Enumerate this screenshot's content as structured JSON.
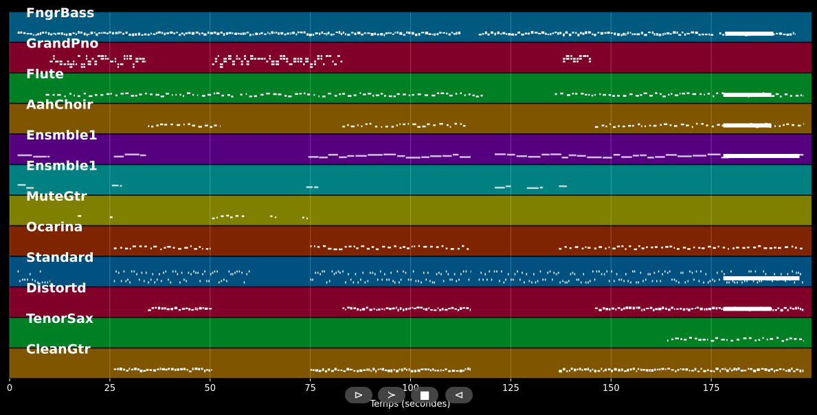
{
  "chart_data": {
    "type": "piano-roll",
    "xlabel": "Temps (secondes)",
    "xlim": [
      0,
      200
    ],
    "xticks": [
      0,
      25,
      50,
      75,
      100,
      125,
      150,
      175
    ],
    "grid": true,
    "tracks": [
      {
        "name": "FngrBass",
        "color": "#005a80",
        "segments": [
          [
            2,
            112.5,
            "dense"
          ],
          [
            117,
            175.5,
            "dense"
          ],
          [
            177,
            196,
            "dense"
          ],
          [
            178.5,
            190.5,
            "block"
          ]
        ]
      },
      {
        "name": "GrandPno",
        "color": "#80002a",
        "segments": [
          [
            10,
            34,
            "chord"
          ],
          [
            50.5,
            83,
            "chord"
          ],
          [
            138,
            145,
            "chord"
          ]
        ]
      },
      {
        "name": "Flute",
        "color": "#007f24",
        "segments": [
          [
            9,
            47,
            "sparse"
          ],
          [
            48,
            56,
            "sparse"
          ],
          [
            57.5,
            118,
            "sparse"
          ],
          [
            136,
            198,
            "sparse"
          ],
          [
            178,
            190,
            "block"
          ]
        ]
      },
      {
        "name": "AahChoir",
        "color": "#7f5500",
        "segments": [
          [
            34.5,
            52.5,
            "sparse"
          ],
          [
            83,
            114,
            "sparse"
          ],
          [
            146,
            198,
            "sparse"
          ],
          [
            178,
            190,
            "block"
          ]
        ]
      },
      {
        "name": "Ensmble1",
        "color": "#55007f",
        "segments": [
          [
            2,
            10,
            "pad"
          ],
          [
            26,
            34,
            "pad"
          ],
          [
            74.5,
            115,
            "pad"
          ],
          [
            121,
            198,
            "pad"
          ],
          [
            178,
            197,
            "block"
          ]
        ]
      },
      {
        "name": "Ensmble1",
        "color": "#008080",
        "segments": [
          [
            2,
            6,
            "pad"
          ],
          [
            25.5,
            28,
            "pad"
          ],
          [
            74,
            77,
            "pad"
          ],
          [
            121,
            125,
            "pad"
          ],
          [
            129,
            133,
            "pad"
          ],
          [
            137,
            139,
            "pad"
          ]
        ]
      },
      {
        "name": "MuteGtr",
        "color": "#7f7f00",
        "segments": [
          [
            17,
            18,
            "sparse"
          ],
          [
            25,
            26,
            "sparse"
          ],
          [
            50.5,
            58.5,
            "sparse"
          ],
          [
            65,
            66.5,
            "sparse"
          ],
          [
            73,
            74.5,
            "sparse"
          ]
        ]
      },
      {
        "name": "Ocarina",
        "color": "#7f2400",
        "segments": [
          [
            26,
            50.5,
            "sparse"
          ],
          [
            75,
            115,
            "sparse"
          ],
          [
            137,
            198,
            "sparse"
          ]
        ]
      },
      {
        "name": "Standard",
        "color": "#005080",
        "segments": [
          [
            2,
            10,
            "drum"
          ],
          [
            26,
            60,
            "drum"
          ],
          [
            75,
            115,
            "drum"
          ],
          [
            117,
            198,
            "drum"
          ],
          [
            178,
            197,
            "block"
          ]
        ]
      },
      {
        "name": "Distortd",
        "color": "#80002a",
        "segments": [
          [
            34.5,
            50.5,
            "dense"
          ],
          [
            83,
            115,
            "dense"
          ],
          [
            146,
            198,
            "dense"
          ],
          [
            178,
            190,
            "block"
          ]
        ]
      },
      {
        "name": "TenorSax",
        "color": "#007f24",
        "segments": [
          [
            164,
            198,
            "sparse"
          ]
        ]
      },
      {
        "name": "CleanGtr",
        "color": "#7f5500",
        "segments": [
          [
            26,
            50.5,
            "dense"
          ],
          [
            75,
            115,
            "dense"
          ],
          [
            137,
            198,
            "dense"
          ]
        ]
      }
    ]
  },
  "transport": {
    "play": "⊳",
    "next": "≻",
    "stop": "■",
    "prev": "⊲"
  }
}
